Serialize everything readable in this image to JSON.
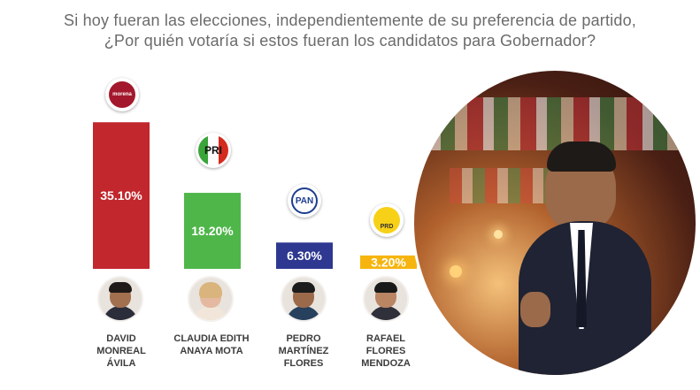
{
  "title_line1": "Si hoy fueran las elecciones, independientemente de su preferencia de partido,",
  "title_line2": "¿Por quién votaría si estos fueran los candidatos para Gobernador?",
  "chart_data": {
    "type": "bar",
    "categories": [
      "DAVID MONREAL ÁVILA",
      "CLAUDIA EDITH ANAYA MOTA",
      "PEDRO MARTÍNEZ FLORES",
      "RAFAEL FLORES MENDOZA"
    ],
    "values": [
      35.1,
      18.2,
      6.3,
      3.2
    ],
    "value_labels": [
      "35.10%",
      "18.20%",
      "6.30%",
      "3.20%"
    ],
    "parties": [
      "morena",
      "PRI",
      "PAN",
      "PRD"
    ],
    "colors": [
      "#c1272d",
      "#4fb64a",
      "#2e3890",
      "#f6b40e"
    ],
    "title": "",
    "xlabel": "",
    "ylabel": "",
    "ylim": [
      0,
      36
    ]
  },
  "candidates": [
    {
      "name": "DAVID\nMONREAL\nÁVILA"
    },
    {
      "name": "CLAUDIA EDITH\nANAYA MOTA"
    },
    {
      "name": "PEDRO\nMARTÍNEZ\nFLORES"
    },
    {
      "name": "RAFAEL\nFLORES\nMENDOZA"
    }
  ],
  "logos": {
    "morena": "morena",
    "pri": "PRI",
    "pan": "PAN",
    "prd": "PRD"
  },
  "photo": {
    "icon": "candidate-photo"
  }
}
